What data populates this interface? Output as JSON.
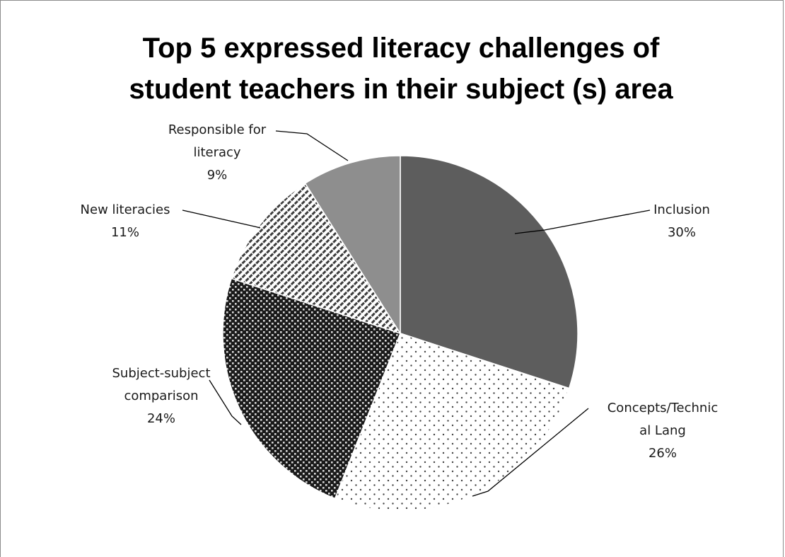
{
  "chart_data": {
    "type": "pie",
    "title_lines": [
      "Top 5 expressed literacy challenges of",
      "student teachers in their subject (s) area"
    ],
    "slices": [
      {
        "name": "Inclusion",
        "value": 30,
        "label_lines": [
          "Inclusion",
          "30%"
        ],
        "fill": "pattern-solid-dark",
        "color": "#595959"
      },
      {
        "name": "Concepts/Technical Lang",
        "value": 26,
        "label_lines": [
          "Concepts/Technic",
          "al Lang",
          "26%"
        ],
        "fill": "pattern-dots",
        "color": "#7f7f7f"
      },
      {
        "name": "Subject-subject comparison",
        "value": 24,
        "label_lines": [
          "Subject-subject",
          "comparison",
          "24%"
        ],
        "fill": "pattern-checker",
        "color": "#2b2b2b"
      },
      {
        "name": "New literacies",
        "value": 11,
        "label_lines": [
          "New literacies",
          "11%"
        ],
        "fill": "pattern-diagonal",
        "color": "#666666"
      },
      {
        "name": "Responsible for literacy",
        "value": 9,
        "label_lines": [
          "Responsible for",
          "literacy",
          "9%"
        ],
        "fill": "pattern-solid-light",
        "color": "#8c8c8c"
      }
    ],
    "legend": "none",
    "start_angle": "12 o'clock",
    "direction": "clockwise"
  }
}
